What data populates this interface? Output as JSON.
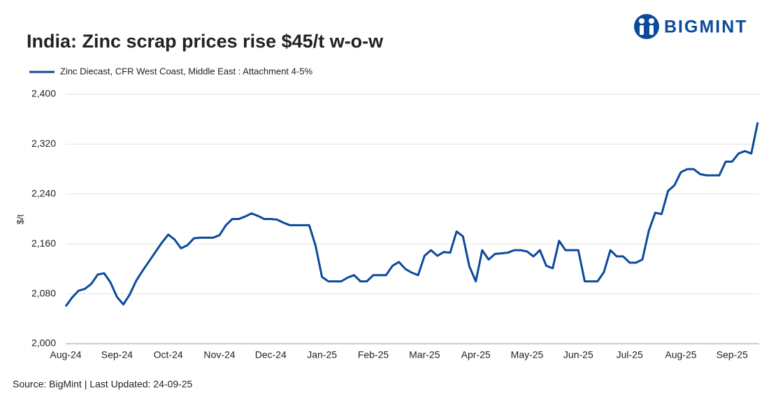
{
  "chart_data": {
    "type": "line",
    "title": "India: Zinc scrap prices rise $45/t w-o-w",
    "brand": "BIGMINT",
    "ylabel": "$/t",
    "source": "Source: BigMint | Last Updated: 24-09-25",
    "legend": "top-left",
    "grid": true,
    "ylim": [
      2000,
      2400
    ],
    "yticks": [
      {
        "value": 2000,
        "label": "2,000"
      },
      {
        "value": 2080,
        "label": "2,080"
      },
      {
        "value": 2160,
        "label": "2,160"
      },
      {
        "value": 2240,
        "label": "2,240"
      },
      {
        "value": 2320,
        "label": "2,320"
      },
      {
        "value": 2400,
        "label": "2,400"
      }
    ],
    "categories": [
      "Aug-24",
      null,
      null,
      null,
      null,
      null,
      null,
      null,
      "Sep-24",
      null,
      null,
      null,
      null,
      null,
      null,
      null,
      "Oct-24",
      null,
      null,
      null,
      null,
      null,
      null,
      null,
      "Nov-24",
      null,
      null,
      null,
      null,
      null,
      null,
      null,
      "Dec-24",
      null,
      null,
      null,
      null,
      null,
      null,
      null,
      "Jan-25",
      null,
      null,
      null,
      null,
      null,
      null,
      null,
      "Feb-25",
      null,
      null,
      null,
      null,
      null,
      null,
      null,
      "Mar-25",
      null,
      null,
      null,
      null,
      null,
      null,
      null,
      "Apr-25",
      null,
      null,
      null,
      null,
      null,
      null,
      null,
      "May-25",
      null,
      null,
      null,
      null,
      null,
      null,
      null,
      "Jun-25",
      null,
      null,
      null,
      null,
      null,
      null,
      null,
      "Jul-25",
      null,
      null,
      null,
      null,
      null,
      null,
      null,
      "Aug-25",
      null,
      null,
      null,
      null,
      null,
      null,
      null,
      "Sep-25",
      null,
      null,
      null,
      null
    ],
    "series": [
      {
        "name": "Zinc Diecast, CFR West Coast, Middle East : Attachment 4-5%",
        "color": "#0b4a9b",
        "values": [
          2060,
          2074,
          2085,
          2088,
          2096,
          2111,
          2113,
          2098,
          2075,
          2063,
          2079,
          2101,
          2117,
          2132,
          2147,
          2162,
          2175,
          2167,
          2153,
          2158,
          2169,
          2170,
          2170,
          2170,
          2174,
          2190,
          2200,
          2200,
          2204,
          2209,
          2205,
          2200,
          2200,
          2199,
          2194,
          2190,
          2190,
          2190,
          2190,
          2157,
          2107,
          2100,
          2100,
          2100,
          2106,
          2110,
          2100,
          2100,
          2110,
          2110,
          2110,
          2125,
          2131,
          2120,
          2114,
          2110,
          2141,
          2150,
          2141,
          2147,
          2146,
          2180,
          2172,
          2124,
          2100,
          2150,
          2135,
          2144,
          2145,
          2146,
          2150,
          2150,
          2148,
          2140,
          2150,
          2125,
          2121,
          2165,
          2150,
          2150,
          2150,
          2100,
          2100,
          2100,
          2115,
          2150,
          2140,
          2140,
          2130,
          2130,
          2135,
          2181,
          2210,
          2208,
          2245,
          2254,
          2275,
          2280,
          2280,
          2272,
          2270,
          2270,
          2270,
          2292,
          2292,
          2305,
          2309,
          2305,
          2355
        ]
      }
    ]
  }
}
